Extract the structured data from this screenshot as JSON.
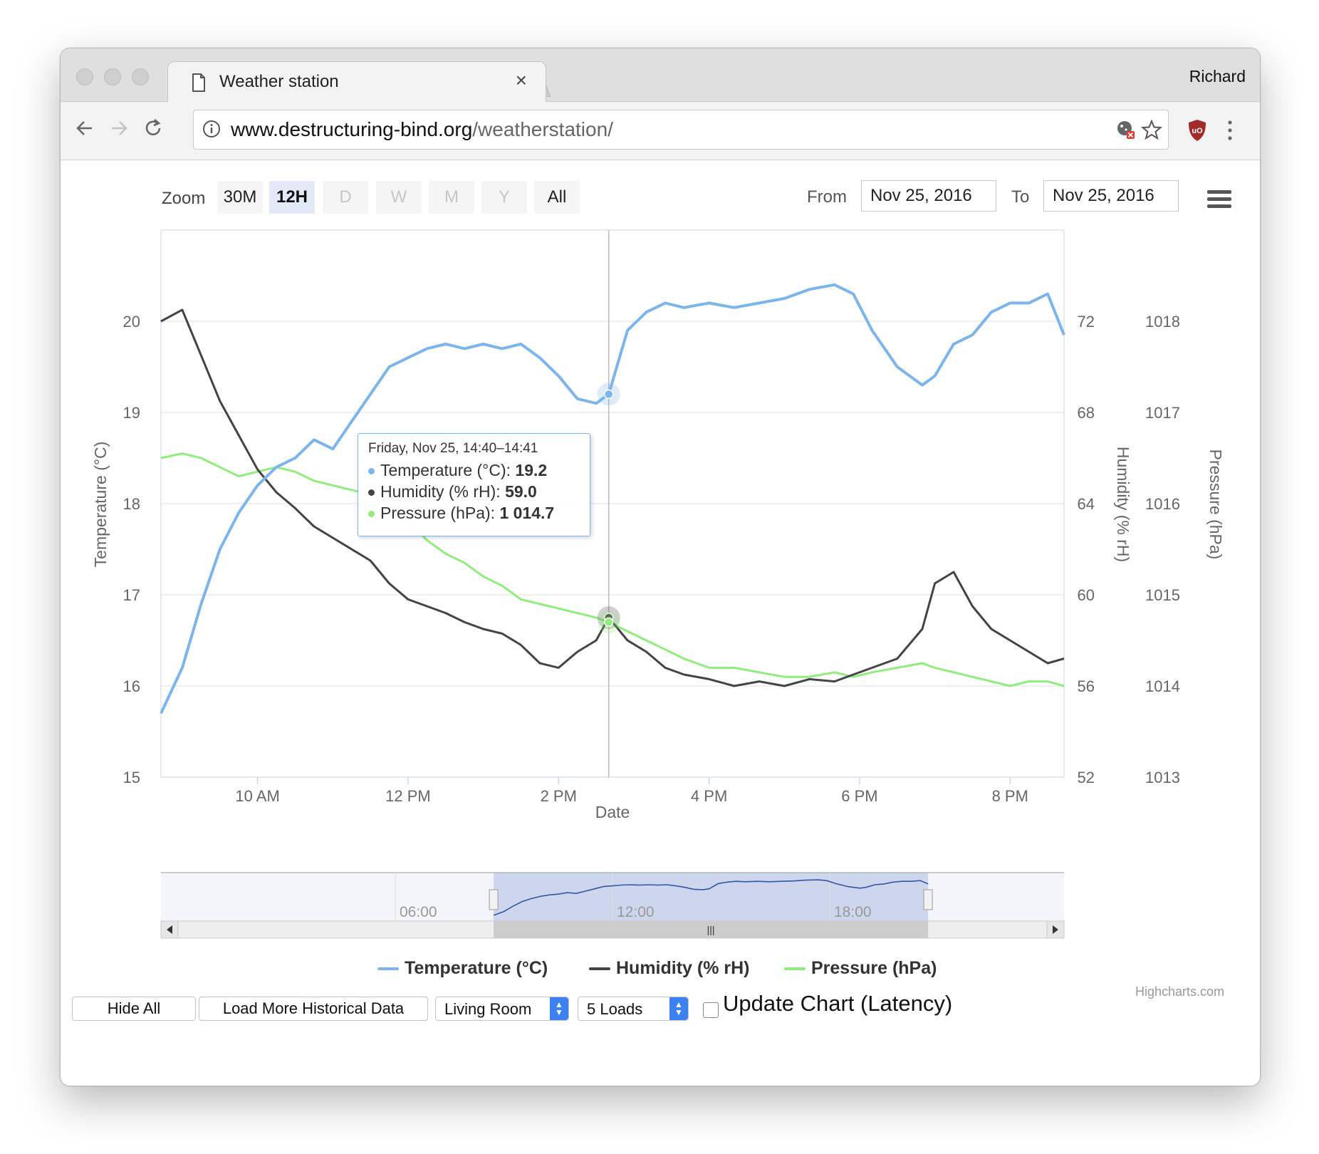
{
  "browser": {
    "tab_title": "Weather station",
    "tab_close": "×",
    "user_name": "Richard",
    "url_host": "www.destructuring-bind.org",
    "url_path": "/weatherstation/"
  },
  "range_selector": {
    "zoom_label": "Zoom",
    "buttons": [
      {
        "label": "30M",
        "state": "normal"
      },
      {
        "label": "12H",
        "state": "active"
      },
      {
        "label": "D",
        "state": "disabled"
      },
      {
        "label": "W",
        "state": "disabled"
      },
      {
        "label": "M",
        "state": "disabled"
      },
      {
        "label": "Y",
        "state": "disabled"
      },
      {
        "label": "All",
        "state": "normal"
      }
    ],
    "from_label": "From",
    "from_value": "Nov 25, 2016",
    "to_label": "To",
    "to_value": "Nov 25, 2016"
  },
  "tooltip": {
    "header": "Friday, Nov 25, 14:40–14:41",
    "rows": [
      {
        "label": "Temperature (°C): ",
        "value": "19.2",
        "color": "#7cb5ec"
      },
      {
        "label": "Humidity (% rH): ",
        "value": "59.0",
        "color": "#434348"
      },
      {
        "label": "Pressure (hPa): ",
        "value": "1 014.7",
        "color": "#90ed7d"
      }
    ]
  },
  "chart_data": {
    "type": "line",
    "xlabel": "Date",
    "x_tick_labels": [
      "10 AM",
      "12 PM",
      "2 PM",
      "4 PM",
      "6 PM",
      "8 PM"
    ],
    "x_range": [
      "08:43",
      "20:43"
    ],
    "y_axes": [
      {
        "label": "Temperature (°C)",
        "range": [
          15,
          21
        ],
        "ticks": [
          "15",
          "16",
          "17",
          "18",
          "19",
          "20"
        ],
        "side": "left"
      },
      {
        "label": "Humidity (% rH)",
        "range": [
          52,
          76
        ],
        "ticks": [
          "52",
          "56",
          "60",
          "64",
          "68",
          "72"
        ],
        "side": "right"
      },
      {
        "label": "Pressure (hPa)",
        "range": [
          1013,
          1019
        ],
        "ticks": [
          "1013",
          "1014",
          "1015",
          "1016",
          "1017",
          "1018"
        ],
        "side": "right"
      }
    ],
    "x": [
      "08:43",
      "09:00",
      "09:15",
      "09:30",
      "09:45",
      "10:00",
      "10:15",
      "10:30",
      "10:45",
      "11:00",
      "11:15",
      "11:30",
      "11:45",
      "12:00",
      "12:15",
      "12:30",
      "12:45",
      "13:00",
      "13:15",
      "13:30",
      "13:45",
      "14:00",
      "14:15",
      "14:30",
      "14:40",
      "14:55",
      "15:10",
      "15:25",
      "15:40",
      "16:00",
      "16:20",
      "16:40",
      "17:00",
      "17:20",
      "17:40",
      "17:55",
      "18:10",
      "18:30",
      "18:50",
      "19:00",
      "19:15",
      "19:30",
      "19:45",
      "20:00",
      "20:15",
      "20:30",
      "20:43"
    ],
    "series": [
      {
        "name": "Temperature (°C)",
        "color": "#7cb5ec",
        "axis": 0,
        "values": [
          15.7,
          16.2,
          16.9,
          17.5,
          17.9,
          18.2,
          18.4,
          18.5,
          18.7,
          18.6,
          18.9,
          19.2,
          19.5,
          19.6,
          19.7,
          19.75,
          19.7,
          19.75,
          19.7,
          19.75,
          19.6,
          19.4,
          19.15,
          19.1,
          19.2,
          19.9,
          20.1,
          20.2,
          20.15,
          20.2,
          20.15,
          20.2,
          20.25,
          20.35,
          20.4,
          20.3,
          19.9,
          19.5,
          19.3,
          19.4,
          19.75,
          19.85,
          20.1,
          20.2,
          20.2,
          20.3,
          19.85
        ]
      },
      {
        "name": "Humidity (% rH)",
        "color": "#434348",
        "axis": 1,
        "values": [
          72.0,
          72.5,
          70.5,
          68.5,
          67.0,
          65.5,
          64.5,
          63.8,
          63.0,
          62.5,
          62.0,
          61.5,
          60.5,
          59.8,
          59.5,
          59.2,
          58.8,
          58.5,
          58.3,
          57.8,
          57.0,
          56.8,
          57.5,
          58.0,
          59.0,
          58.0,
          57.5,
          56.8,
          56.5,
          56.3,
          56.0,
          56.2,
          56.0,
          56.3,
          56.2,
          56.5,
          56.8,
          57.2,
          58.5,
          60.5,
          61.0,
          59.5,
          58.5,
          58.0,
          57.5,
          57.0,
          57.2
        ]
      },
      {
        "name": "Pressure (hPa)",
        "color": "#90ed7d",
        "axis": 2,
        "values": [
          1016.5,
          1016.55,
          1016.5,
          1016.4,
          1016.3,
          1016.35,
          1016.4,
          1016.35,
          1016.25,
          1016.2,
          1016.15,
          1016.1,
          1015.95,
          1015.8,
          1015.6,
          1015.45,
          1015.35,
          1015.2,
          1015.1,
          1014.95,
          1014.9,
          1014.85,
          1014.8,
          1014.75,
          1014.7,
          1014.6,
          1014.5,
          1014.4,
          1014.3,
          1014.2,
          1014.2,
          1014.15,
          1014.1,
          1014.1,
          1014.15,
          1014.1,
          1014.15,
          1014.2,
          1014.25,
          1014.2,
          1014.15,
          1014.1,
          1014.05,
          1014.0,
          1014.05,
          1014.05,
          1014.0
        ]
      }
    ],
    "crosshair_x": "14:40",
    "grid": true,
    "legend_position": "bottom-center"
  },
  "navigator": {
    "tick_labels": [
      "06:00",
      "12:00",
      "18:00"
    ],
    "selected_range": [
      "08:43",
      "20:43"
    ],
    "handle_glyph": "|||"
  },
  "credits": "Highcharts.com",
  "controls": {
    "hide_all": "Hide All",
    "load_more": "Load More Historical Data",
    "room_select": "Living Room",
    "loads_select": "5 Loads",
    "update_label": "Update Chart (Latency)"
  }
}
